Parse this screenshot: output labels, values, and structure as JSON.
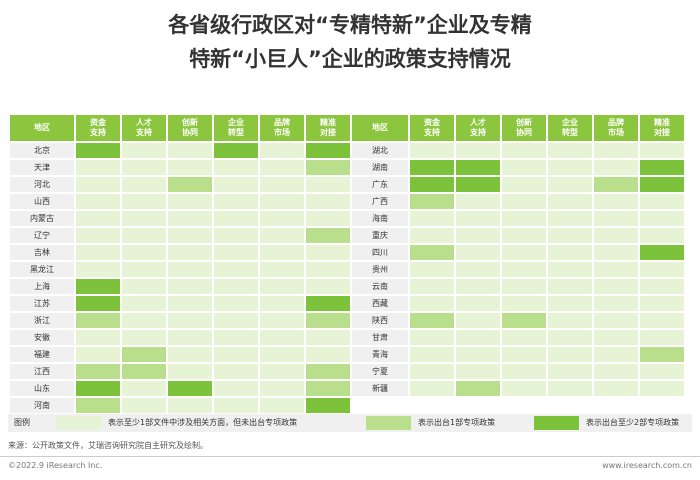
{
  "title": {
    "line1": "各省级行政区对“专精特新”企业及专精",
    "line2": "特新“小巨人”企业的政策支持情况"
  },
  "colors": {
    "header": "#8cc63f",
    "level0": "#e6f3d4",
    "level1": "#b9df8c",
    "level2": "#7cc23a",
    "region_cell": "#f0f0f0"
  },
  "chart_data": {
    "type": "table",
    "columns": [
      "地区",
      "资金\n支持",
      "人才\n支持",
      "创新\n协同",
      "企业\n转型",
      "品牌\n市场",
      "精准\n对接"
    ],
    "value_legend": {
      "0": "表示至少1部文件中涉及相关方面，但未出台专项政策",
      "1": "表示出台1部专项政策",
      "2": "表示出台至少2部专项政策"
    },
    "left_rows": [
      {
        "region": "北京",
        "values": [
          2,
          0,
          0,
          2,
          0,
          2
        ]
      },
      {
        "region": "天津",
        "values": [
          0,
          0,
          0,
          0,
          0,
          1
        ]
      },
      {
        "region": "河北",
        "values": [
          0,
          0,
          1,
          0,
          0,
          0
        ]
      },
      {
        "region": "山西",
        "values": [
          0,
          0,
          0,
          0,
          0,
          0
        ]
      },
      {
        "region": "内蒙古",
        "values": [
          0,
          0,
          0,
          0,
          0,
          0
        ]
      },
      {
        "region": "辽宁",
        "values": [
          0,
          0,
          0,
          0,
          0,
          1
        ]
      },
      {
        "region": "吉林",
        "values": [
          0,
          0,
          0,
          0,
          0,
          0
        ]
      },
      {
        "region": "黑龙江",
        "values": [
          0,
          0,
          0,
          0,
          0,
          0
        ]
      },
      {
        "region": "上海",
        "values": [
          2,
          0,
          0,
          0,
          0,
          0
        ]
      },
      {
        "region": "江苏",
        "values": [
          2,
          0,
          0,
          0,
          0,
          2
        ]
      },
      {
        "region": "浙江",
        "values": [
          1,
          0,
          0,
          0,
          0,
          1
        ]
      },
      {
        "region": "安徽",
        "values": [
          0,
          0,
          0,
          0,
          0,
          0
        ]
      },
      {
        "region": "福建",
        "values": [
          0,
          1,
          0,
          0,
          0,
          0
        ]
      },
      {
        "region": "江西",
        "values": [
          1,
          1,
          0,
          0,
          0,
          1
        ]
      },
      {
        "region": "山东",
        "values": [
          2,
          0,
          2,
          0,
          0,
          1
        ]
      },
      {
        "region": "河南",
        "values": [
          1,
          0,
          0,
          0,
          0,
          2
        ]
      }
    ],
    "right_rows": [
      {
        "region": "湖北",
        "values": [
          0,
          0,
          0,
          0,
          0,
          0
        ]
      },
      {
        "region": "湖南",
        "values": [
          2,
          2,
          0,
          0,
          0,
          2
        ]
      },
      {
        "region": "广东",
        "values": [
          2,
          2,
          0,
          0,
          1,
          2
        ]
      },
      {
        "region": "广西",
        "values": [
          1,
          0,
          0,
          0,
          0,
          0
        ]
      },
      {
        "region": "海南",
        "values": [
          0,
          0,
          0,
          0,
          0,
          0
        ]
      },
      {
        "region": "重庆",
        "values": [
          0,
          0,
          0,
          0,
          0,
          0
        ]
      },
      {
        "region": "四川",
        "values": [
          1,
          0,
          0,
          0,
          0,
          2
        ]
      },
      {
        "region": "贵州",
        "values": [
          0,
          0,
          0,
          0,
          0,
          0
        ]
      },
      {
        "region": "云南",
        "values": [
          0,
          0,
          0,
          0,
          0,
          0
        ]
      },
      {
        "region": "西藏",
        "values": [
          0,
          0,
          0,
          0,
          0,
          0
        ]
      },
      {
        "region": "陕西",
        "values": [
          1,
          0,
          1,
          0,
          0,
          0
        ]
      },
      {
        "region": "甘肃",
        "values": [
          0,
          0,
          0,
          0,
          0,
          0
        ]
      },
      {
        "region": "青海",
        "values": [
          0,
          0,
          0,
          0,
          0,
          1
        ]
      },
      {
        "region": "宁夏",
        "values": [
          0,
          0,
          0,
          0,
          0,
          0
        ]
      },
      {
        "region": "新疆",
        "values": [
          0,
          1,
          0,
          0,
          0,
          0
        ]
      }
    ]
  },
  "legend": {
    "title": "图例",
    "items": [
      "表示至少1部文件中涉及相关方面，但未出台专项政策",
      "表示出台1部专项政策",
      "表示出台至少2部专项政策"
    ]
  },
  "source": "来源：公开政策文件，艾瑞咨询研究院自主研究及绘制。",
  "footer": {
    "left": "©2022.9 iResearch Inc.",
    "right": "www.iresearch.com.cn"
  }
}
